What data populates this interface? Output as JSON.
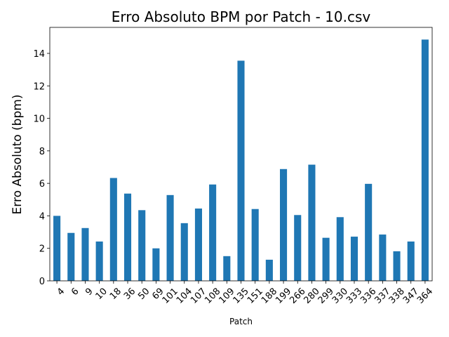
{
  "chart_data": {
    "type": "bar",
    "title": "Erro Absoluto BPM por Patch - 10.csv",
    "xlabel": "Patch",
    "ylabel": "Erro Absoluto (bpm)",
    "categories": [
      "4",
      "6",
      "9",
      "10",
      "18",
      "36",
      "50",
      "69",
      "101",
      "104",
      "107",
      "108",
      "109",
      "135",
      "151",
      "188",
      "199",
      "266",
      "280",
      "299",
      "330",
      "333",
      "336",
      "337",
      "338",
      "347",
      "364"
    ],
    "values": [
      4.0,
      2.95,
      3.25,
      2.42,
      6.33,
      5.37,
      4.35,
      2.0,
      5.28,
      3.55,
      4.45,
      5.93,
      1.52,
      13.55,
      4.42,
      1.3,
      6.88,
      4.05,
      7.15,
      2.65,
      3.92,
      2.72,
      5.97,
      2.85,
      1.82,
      2.42,
      14.85
    ],
    "ylim": [
      0,
      15.6
    ],
    "yticks": [
      0,
      2,
      4,
      6,
      8,
      10,
      12,
      14
    ],
    "bar_color": "#1f77b4",
    "grid": false,
    "legend": "none"
  }
}
